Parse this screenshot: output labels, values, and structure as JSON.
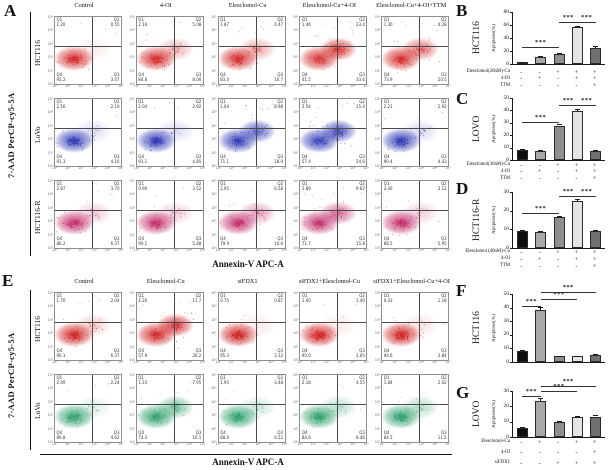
{
  "flow_axis_ticks": {
    "y": [
      "10⁵",
      "10⁴",
      "10³",
      "10²",
      "10¹",
      "10⁰"
    ],
    "x": [
      "10⁰",
      "10¹",
      "10²",
      "10³",
      "10⁴",
      "10⁵"
    ]
  },
  "flow_panels": [
    {
      "letter": "A",
      "y_axis": "7-AAD PerCP-cy5-5A",
      "x_axis": "Annexin-V APC-A",
      "columns": [
        "Control",
        "4-OI",
        "Elesclomol-Cu",
        "Elesclomol-Cu+4-OI",
        "Elesclomol-Cu+4-OI+TTM"
      ],
      "rows": [
        {
          "label": "HCT116",
          "color": "#d32626",
          "plots": [
            {
              "q1": "1.20",
              "q2": "0.55",
              "q3": "3.47",
              "q4": "95.2"
            },
            {
              "q1": "2.16",
              "q2": "5.08",
              "q3": "8.00",
              "q4": "84.8"
            },
            {
              "q1": "1.87",
              "q2": "4.47",
              "q3": "10.7",
              "q4": "83.0"
            },
            {
              "q1": "1.46",
              "q2": "23.4",
              "q3": "33.6",
              "q4": "41.5"
            },
            {
              "q1": "1.30",
              "q2": "4.28",
              "q3": "20.5",
              "q4": "73.9"
            }
          ]
        },
        {
          "label": "LoVo",
          "color": "#2e37b5",
          "plots": [
            {
              "q1": "2.16",
              "q2": "2.19",
              "q3": "4.16",
              "q4": "91.3"
            },
            {
              "q1": "2.04",
              "q2": "2.02",
              "q3": "4.85",
              "q4": "91.1"
            },
            {
              "q1": "1.04",
              "q2": "8.98",
              "q3": "18.9",
              "q4": "71.1"
            },
            {
              "q1": "2.54",
              "q2": "15.4",
              "q3": "24.6",
              "q4": "57.4"
            },
            {
              "q1": "2.21",
              "q2": "2.92",
              "q3": "4.43",
              "q4": "90.4"
            }
          ]
        },
        {
          "label": "HCT116-R",
          "color": "#c22a6b",
          "plots": [
            {
              "q1": "2.87",
              "q2": "3.70",
              "q3": "6.37",
              "q4": "86.2"
            },
            {
              "q1": "0.90",
              "q2": "3.52",
              "q3": "5.48",
              "q4": "90.1"
            },
            {
              "q1": "2.95",
              "q2": "6.58",
              "q3": "10.6",
              "q4": "79.9"
            },
            {
              "q1": "2.89",
              "q2": "9.62",
              "q3": "15.8",
              "q4": "71.7"
            },
            {
              "q1": "2.46",
              "q2": "3.12",
              "q3": "5.95",
              "q4": "88.5"
            }
          ]
        }
      ]
    },
    {
      "letter": "E",
      "y_axis": "7-AAD PerCP-cy5-5A",
      "x_axis": "Annexin-V APC-A",
      "columns": [
        "Control",
        "Elesclomol-Cu",
        "siFDX1",
        "siFDX1+Elesclomol-Cu",
        "siFDX1+Elesclomol-Cu+4-OI"
      ],
      "rows": [
        {
          "label": "HCT116",
          "color": "#cf1f1f",
          "plots": [
            {
              "q1": "1.70",
              "q2": "2.04",
              "q3": "6.37",
              "q4": "90.1"
            },
            {
              "q1": "4.20",
              "q2": "11.7",
              "q3": "26.2",
              "q4": "57.9"
            },
            {
              "q1": "0.75",
              "q2": "0.87",
              "q3": "3.12",
              "q4": "95.3"
            },
            {
              "q1": "1.00",
              "q2": "1.40",
              "q3": "2.65",
              "q4": "95.0"
            },
            {
              "q1": "0.43",
              "q2": "1.18",
              "q3": "3.84",
              "q4": "94.6"
            }
          ]
        },
        {
          "label": "LoVo",
          "color": "#2da06a",
          "plots": [
            {
              "q1": "2.49",
              "q2": "2.24",
              "q3": "4.62",
              "q4": "89.8"
            },
            {
              "q1": "1.23",
              "q2": "7.95",
              "q3": "16.1",
              "q4": "74.3"
            },
            {
              "q1": "1.95",
              "q2": "3.48",
              "q3": "6.52",
              "q4": "88.0"
            },
            {
              "q1": "2.18",
              "q2": "4.55",
              "q3": "8.46",
              "q4": "84.6"
            },
            {
              "q1": "1.84",
              "q2": "2.02",
              "q3": "11.5",
              "q4": "84.5"
            }
          ]
        }
      ]
    }
  ],
  "bar_colors": [
    "#0f0f0f",
    "#a8a8a8",
    "#8f8f8f",
    "#e4e4e4",
    "#707070"
  ],
  "chart_data": [
    {
      "id": "B",
      "type": "bar",
      "panel_letter": "B",
      "cell_line": "HCT116",
      "ylabel": "Apoptosis(%)",
      "ylim": [
        0,
        80
      ],
      "yticks": [
        0,
        20,
        40,
        60,
        80
      ],
      "categories": [
        "Control",
        "4-OI",
        "Elesclomol-Cu",
        "Elesclomol-Cu+4-OI",
        "Elesclomol-Cu+4-OI+TTM"
      ],
      "values": [
        3.2,
        11.5,
        15.2,
        57.5,
        24.8
      ],
      "errors": [
        0.6,
        1.2,
        1.1,
        1.8,
        2.8
      ],
      "significance": [
        {
          "from": 1,
          "to": 3,
          "y": 26,
          "label": "***"
        },
        {
          "from": 3,
          "to": 4,
          "y": 64,
          "label": "***"
        },
        {
          "from": 4,
          "to": 5,
          "y": 64,
          "label": "***"
        }
      ],
      "x_rows": [
        {
          "label": "Elesclomol(20nM)-Cu",
          "signs": [
            "-",
            "-",
            "+",
            "+",
            "+"
          ]
        },
        {
          "label": "4-OI",
          "signs": [
            "-",
            "+",
            "-",
            "+",
            "+"
          ]
        },
        {
          "label": "TTM",
          "signs": [
            "-",
            "-",
            "-",
            "-",
            "+"
          ]
        }
      ]
    },
    {
      "id": "C",
      "type": "bar",
      "panel_letter": "C",
      "cell_line": "LOVO",
      "ylabel": "Apoptosis(%)",
      "ylim": [
        0,
        50
      ],
      "yticks": [
        0,
        10,
        20,
        30,
        40,
        50
      ],
      "categories": [
        "Control",
        "4-OI",
        "Elesclomol-Cu",
        "Elesclomol-Cu+4-OI",
        "Elesclomol-Cu+4-OI+TTM"
      ],
      "values": [
        7.8,
        7.2,
        27.8,
        39.8,
        7.4
      ],
      "errors": [
        0.8,
        0.7,
        1.4,
        1.2,
        0.8
      ],
      "significance": [
        {
          "from": 1,
          "to": 3,
          "y": 31,
          "label": "***"
        },
        {
          "from": 3,
          "to": 4,
          "y": 44,
          "label": "***"
        },
        {
          "from": 4,
          "to": 5,
          "y": 44,
          "label": "***"
        }
      ],
      "x_rows": [
        {
          "label": "Elesclomol(30nM)-Cu",
          "signs": [
            "-",
            "-",
            "+",
            "+",
            "+"
          ]
        },
        {
          "label": "4-OI",
          "signs": [
            "-",
            "+",
            "-",
            "+",
            "+"
          ]
        },
        {
          "label": "TTM",
          "signs": [
            "-",
            "-",
            "-",
            "-",
            "+"
          ]
        }
      ]
    },
    {
      "id": "D",
      "type": "bar",
      "panel_letter": "D",
      "cell_line": "HCT116-R",
      "ylabel": "Apoptosis(%)",
      "ylim": [
        0,
        30
      ],
      "yticks": [
        0,
        10,
        20,
        30
      ],
      "categories": [
        "Control",
        "4-OI",
        "Elesclomol-Cu",
        "Elesclomol-Cu+4-OI",
        "Elesclomol-Cu+4-OI+TTM"
      ],
      "values": [
        9.0,
        8.8,
        16.5,
        25.3,
        9.1
      ],
      "errors": [
        0.5,
        0.5,
        0.9,
        1.0,
        0.5
      ],
      "significance": [
        {
          "from": 1,
          "to": 3,
          "y": 19,
          "label": "***"
        },
        {
          "from": 3,
          "to": 4,
          "y": 28,
          "label": "***"
        },
        {
          "from": 4,
          "to": 5,
          "y": 28,
          "label": "***"
        }
      ],
      "x_rows": [
        {
          "label": "Elesclomol (40nM)-Cu",
          "signs": [
            "-",
            "-",
            "+",
            "+",
            "+"
          ]
        },
        {
          "label": "4-OI",
          "signs": [
            "-",
            "+",
            "-",
            "+",
            "+"
          ]
        },
        {
          "label": "TTM",
          "signs": [
            "-",
            "-",
            "-",
            "-",
            "+"
          ]
        }
      ]
    },
    {
      "id": "F",
      "type": "bar",
      "panel_letter": "F",
      "cell_line": "HCT116",
      "ylabel": "Apoptosis(%)",
      "ylim": [
        0,
        50
      ],
      "yticks": [
        0,
        10,
        20,
        30,
        40,
        50
      ],
      "categories": [
        "Control",
        "Elesclomol-Cu",
        "siFDX1",
        "siFDX1+Elesclomol-Cu",
        "siFDX1+Elesclomol-Cu+4-OI"
      ],
      "values": [
        7.9,
        38.0,
        4.1,
        4.2,
        5.0
      ],
      "errors": [
        0.9,
        2.6,
        0.5,
        0.5,
        0.6
      ],
      "significance": [
        {
          "from": 1,
          "to": 2,
          "y": 41.5,
          "label": "***"
        },
        {
          "from": 2,
          "to": 4,
          "y": 46.5,
          "label": "***"
        },
        {
          "from": 2,
          "to": 5,
          "y": 51.5,
          "label": "***"
        }
      ],
      "x_rows": []
    },
    {
      "id": "G",
      "type": "bar",
      "panel_letter": "G",
      "cell_line": "LOVO",
      "ylabel": "Apoptosis(%)",
      "ylim": [
        0,
        30
      ],
      "yticks": [
        0,
        10,
        20,
        30
      ],
      "categories": [
        "Control",
        "Elesclomol-Cu",
        "siFDX1",
        "siFDX1+Elesclomol-Cu",
        "siFDX1+Elesclomol-Cu+4-OI"
      ],
      "values": [
        6.1,
        23.8,
        9.8,
        12.9,
        13.4
      ],
      "errors": [
        0.7,
        1.6,
        0.9,
        0.9,
        0.7
      ],
      "significance": [
        {
          "from": 1,
          "to": 2,
          "y": 27,
          "label": "***"
        },
        {
          "from": 2,
          "to": 4,
          "y": 30,
          "label": "***"
        },
        {
          "from": 2,
          "to": 5,
          "y": 33,
          "label": "***"
        }
      ],
      "x_rows": [
        {
          "label": "Elesclomol-Cu",
          "signs": [
            "-",
            "+",
            "-",
            "+",
            "+"
          ]
        },
        {
          "label": "4-OI",
          "signs": [
            "-",
            "-",
            "-",
            "-",
            "+"
          ]
        },
        {
          "label": "siFDX1",
          "signs": [
            "-",
            "-",
            "+",
            "+",
            "+"
          ]
        }
      ]
    }
  ]
}
